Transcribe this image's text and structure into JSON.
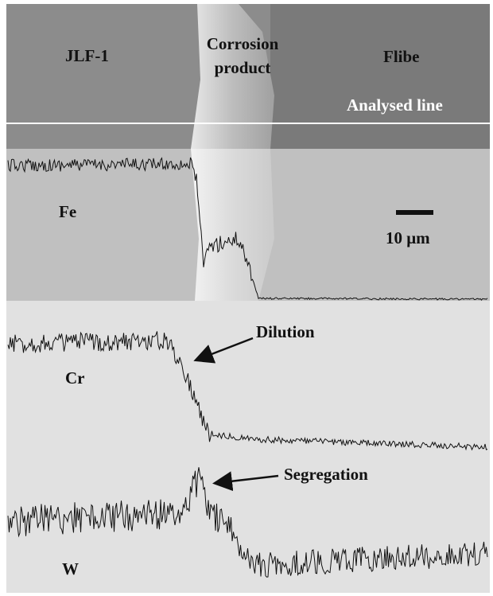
{
  "sem_image": {
    "materials": {
      "left": "JLF-1",
      "middle": [
        "Corrosion",
        "product"
      ],
      "right": "Flibe"
    },
    "line_label": "Analysed line",
    "scale_bar": "10 μm"
  },
  "profiles": [
    {
      "element": "Fe"
    },
    {
      "element": "Cr",
      "annotation": "Dilution"
    },
    {
      "element": "W",
      "annotation": "Segregation"
    }
  ]
}
